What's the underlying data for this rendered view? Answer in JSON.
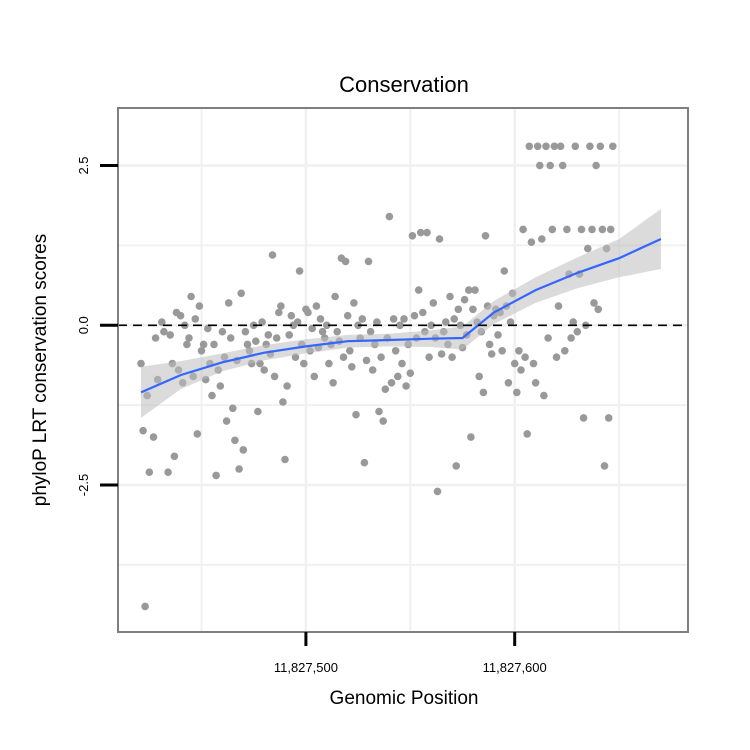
{
  "chart_data": {
    "type": "scatter",
    "title": "Conservation",
    "xlabel": "Genomic Position",
    "ylabel": "phyloP LRT conservation scores",
    "xlim": [
      11827410,
      11827683
    ],
    "ylim": [
      -4.8,
      3.4
    ],
    "x_ticks": [
      {
        "value": 11827500,
        "label": "11,827,500"
      },
      {
        "value": 11827600,
        "label": "11,827,600"
      }
    ],
    "y_ticks": [
      {
        "value": 2.5,
        "label": "2.5"
      },
      {
        "value": 0,
        "label": "0.0"
      },
      {
        "value": -2.5,
        "label": "-2.5"
      }
    ],
    "x_minor_gridlines": [
      11827450,
      11827550,
      11827650
    ],
    "y_minor_gridlines": [
      -3.75,
      -1.25,
      1.25
    ],
    "grid": true,
    "reference_line": {
      "y": 0,
      "style": "dashed"
    },
    "colors": {
      "points": "#999999",
      "smooth": "#3366ff",
      "ribbon": "#bdbdbd",
      "panel_border": "#7f7f7f",
      "gridlines": "#f0f0f0"
    },
    "points": [
      [
        11827421,
        -0.6
      ],
      [
        11827422,
        -1.65
      ],
      [
        11827423,
        -4.4
      ],
      [
        11827424,
        -1.1
      ],
      [
        11827425,
        -2.3
      ],
      [
        11827427,
        -1.75
      ],
      [
        11827428,
        -0.2
      ],
      [
        11827429,
        -0.85
      ],
      [
        11827431,
        0.05
      ],
      [
        11827432,
        -0.1
      ],
      [
        11827434,
        -2.3
      ],
      [
        11827435,
        -0.15
      ],
      [
        11827436,
        -0.6
      ],
      [
        11827437,
        -2.05
      ],
      [
        11827438,
        0.2
      ],
      [
        11827439,
        -0.7
      ],
      [
        11827440,
        0.15
      ],
      [
        11827441,
        -0.9
      ],
      [
        11827442,
        0.0
      ],
      [
        11827443,
        -0.3
      ],
      [
        11827444,
        -0.2
      ],
      [
        11827445,
        0.45
      ],
      [
        11827446,
        -0.8
      ],
      [
        11827447,
        0.1
      ],
      [
        11827448,
        -1.7
      ],
      [
        11827449,
        0.3
      ],
      [
        11827450,
        -0.4
      ],
      [
        11827451,
        -0.3
      ],
      [
        11827452,
        -0.85
      ],
      [
        11827453,
        -0.05
      ],
      [
        11827454,
        -0.6
      ],
      [
        11827455,
        -1.1
      ],
      [
        11827456,
        -0.3
      ],
      [
        11827457,
        -2.35
      ],
      [
        11827458,
        -0.7
      ],
      [
        11827459,
        -0.95
      ],
      [
        11827460,
        -0.1
      ],
      [
        11827461,
        -0.5
      ],
      [
        11827462,
        -1.5
      ],
      [
        11827463,
        0.35
      ],
      [
        11827464,
        -0.2
      ],
      [
        11827465,
        -1.3
      ],
      [
        11827466,
        -1.8
      ],
      [
        11827467,
        -0.55
      ],
      [
        11827468,
        -2.25
      ],
      [
        11827469,
        0.5
      ],
      [
        11827470,
        -1.95
      ],
      [
        11827471,
        -0.1
      ],
      [
        11827472,
        -0.3
      ],
      [
        11827473,
        -0.4
      ],
      [
        11827474,
        -0.6
      ],
      [
        11827475,
        0.0
      ],
      [
        11827476,
        -0.25
      ],
      [
        11827477,
        -1.35
      ],
      [
        11827478,
        -0.6
      ],
      [
        11827479,
        0.05
      ],
      [
        11827480,
        -0.7
      ],
      [
        11827481,
        -0.3
      ],
      [
        11827482,
        -0.15
      ],
      [
        11827483,
        -0.45
      ],
      [
        11827484,
        1.1
      ],
      [
        11827485,
        -0.8
      ],
      [
        11827486,
        -0.2
      ],
      [
        11827487,
        0.2
      ],
      [
        11827488,
        0.3
      ],
      [
        11827489,
        -1.2
      ],
      [
        11827490,
        -2.1
      ],
      [
        11827491,
        -0.95
      ],
      [
        11827492,
        -0.15
      ],
      [
        11827493,
        0.15
      ],
      [
        11827494,
        0.0
      ],
      [
        11827495,
        -0.5
      ],
      [
        11827496,
        0.05
      ],
      [
        11827497,
        0.85
      ],
      [
        11827498,
        -0.3
      ],
      [
        11827499,
        -0.6
      ],
      [
        11827500,
        0.25
      ],
      [
        11827501,
        0.2
      ],
      [
        11827502,
        -0.4
      ],
      [
        11827503,
        -0.05
      ],
      [
        11827504,
        -0.8
      ],
      [
        11827505,
        0.3
      ],
      [
        11827506,
        -0.35
      ],
      [
        11827507,
        0.1
      ],
      [
        11827508,
        -0.1
      ],
      [
        11827509,
        -0.2
      ],
      [
        11827510,
        0.0
      ],
      [
        11827511,
        -0.6
      ],
      [
        11827512,
        -0.3
      ],
      [
        11827513,
        -0.9
      ],
      [
        11827514,
        0.45
      ],
      [
        11827515,
        -0.1
      ],
      [
        11827516,
        -0.25
      ],
      [
        11827517,
        1.05
      ],
      [
        11827518,
        -0.5
      ],
      [
        11827519,
        1.0
      ],
      [
        11827520,
        0.15
      ],
      [
        11827521,
        -0.4
      ],
      [
        11827522,
        -0.65
      ],
      [
        11827523,
        0.35
      ],
      [
        11827524,
        -1.4
      ],
      [
        11827525,
        0.0
      ],
      [
        11827526,
        -0.2
      ],
      [
        11827527,
        0.1
      ],
      [
        11827528,
        -2.15
      ],
      [
        11827529,
        -0.55
      ],
      [
        11827530,
        1.0
      ],
      [
        11827531,
        -0.1
      ],
      [
        11827532,
        -0.7
      ],
      [
        11827533,
        -0.3
      ],
      [
        11827534,
        0.05
      ],
      [
        11827535,
        -1.35
      ],
      [
        11827536,
        -0.5
      ],
      [
        11827537,
        -1.5
      ],
      [
        11827538,
        -1.0
      ],
      [
        11827539,
        -0.2
      ],
      [
        11827540,
        1.7
      ],
      [
        11827541,
        -0.9
      ],
      [
        11827542,
        0.1
      ],
      [
        11827543,
        -0.4
      ],
      [
        11827544,
        -0.8
      ],
      [
        11827545,
        0.0
      ],
      [
        11827546,
        -0.6
      ],
      [
        11827547,
        0.1
      ],
      [
        11827548,
        -0.95
      ],
      [
        11827549,
        -0.3
      ],
      [
        11827550,
        -0.75
      ],
      [
        11827551,
        1.4
      ],
      [
        11827552,
        0.15
      ],
      [
        11827553,
        -0.2
      ],
      [
        11827554,
        0.55
      ],
      [
        11827555,
        1.45
      ],
      [
        11827556,
        0.2
      ],
      [
        11827557,
        -0.1
      ],
      [
        11827558,
        1.45
      ],
      [
        11827559,
        -0.5
      ],
      [
        11827560,
        0.0
      ],
      [
        11827561,
        0.35
      ],
      [
        11827562,
        -0.2
      ],
      [
        11827563,
        -2.6
      ],
      [
        11827564,
        1.35
      ],
      [
        11827565,
        -0.45
      ],
      [
        11827566,
        -0.1
      ],
      [
        11827567,
        0.05
      ],
      [
        11827568,
        -0.3
      ],
      [
        11827569,
        0.45
      ],
      [
        11827570,
        -0.5
      ],
      [
        11827571,
        0.1
      ],
      [
        11827572,
        -2.2
      ],
      [
        11827573,
        0.25
      ],
      [
        11827574,
        0.0
      ],
      [
        11827575,
        -0.35
      ],
      [
        11827576,
        0.4
      ],
      [
        11827577,
        -0.15
      ],
      [
        11827578,
        0.55
      ],
      [
        11827579,
        -1.75
      ],
      [
        11827580,
        0.25
      ],
      [
        11827581,
        0.55
      ],
      [
        11827582,
        0.05
      ],
      [
        11827583,
        -0.8
      ],
      [
        11827584,
        -0.1
      ],
      [
        11827585,
        -1.05
      ],
      [
        11827586,
        1.4
      ],
      [
        11827587,
        0.3
      ],
      [
        11827588,
        -0.3
      ],
      [
        11827589,
        -0.45
      ],
      [
        11827590,
        0.15
      ],
      [
        11827591,
        0.25
      ],
      [
        11827592,
        -0.15
      ],
      [
        11827593,
        0.2
      ],
      [
        11827594,
        -0.4
      ],
      [
        11827595,
        0.85
      ],
      [
        11827596,
        0.3
      ],
      [
        11827597,
        -0.9
      ],
      [
        11827598,
        0.05
      ],
      [
        11827599,
        0.5
      ],
      [
        11827600,
        -0.6
      ],
      [
        11827601,
        -1.05
      ],
      [
        11827602,
        -0.4
      ],
      [
        11827603,
        -0.7
      ],
      [
        11827604,
        1.5
      ],
      [
        11827605,
        -0.5
      ],
      [
        11827606,
        -1.7
      ],
      [
        11827607,
        2.8
      ],
      [
        11827608,
        1.3
      ],
      [
        11827609,
        -0.6
      ],
      [
        11827610,
        -0.9
      ],
      [
        11827611,
        2.8
      ],
      [
        11827612,
        2.5
      ],
      [
        11827613,
        1.35
      ],
      [
        11827614,
        -1.1
      ],
      [
        11827615,
        2.8
      ],
      [
        11827616,
        -0.2
      ],
      [
        11827617,
        2.5
      ],
      [
        11827618,
        1.5
      ],
      [
        11827619,
        2.8
      ],
      [
        11827620,
        -0.5
      ],
      [
        11827621,
        0.3
      ],
      [
        11827622,
        2.8
      ],
      [
        11827623,
        2.5
      ],
      [
        11827624,
        -0.4
      ],
      [
        11827625,
        1.5
      ],
      [
        11827626,
        0.8
      ],
      [
        11827627,
        -0.2
      ],
      [
        11827628,
        0.05
      ],
      [
        11827629,
        2.8
      ],
      [
        11827630,
        -0.1
      ],
      [
        11827631,
        0.8
      ],
      [
        11827632,
        1.5
      ],
      [
        11827633,
        -1.45
      ],
      [
        11827634,
        0.0
      ],
      [
        11827635,
        1.2
      ],
      [
        11827636,
        2.8
      ],
      [
        11827637,
        1.5
      ],
      [
        11827638,
        0.35
      ],
      [
        11827639,
        2.5
      ],
      [
        11827640,
        0.25
      ],
      [
        11827641,
        2.8
      ],
      [
        11827642,
        1.5
      ],
      [
        11827643,
        -2.2
      ],
      [
        11827644,
        1.2
      ],
      [
        11827645,
        -1.45
      ],
      [
        11827646,
        1.5
      ],
      [
        11827647,
        2.8
      ]
    ],
    "smooth": {
      "x": [
        11827421,
        11827440,
        11827460,
        11827480,
        11827500,
        11827520,
        11827540,
        11827560,
        11827575,
        11827590,
        11827610,
        11827630,
        11827650,
        11827670
      ],
      "y": [
        -1.05,
        -0.78,
        -0.58,
        -0.43,
        -0.33,
        -0.25,
        -0.23,
        -0.21,
        -0.2,
        0.2,
        0.55,
        0.82,
        1.05,
        1.35
      ],
      "lower": [
        -1.45,
        -1.0,
        -0.72,
        -0.55,
        -0.44,
        -0.35,
        -0.33,
        -0.34,
        -0.38,
        0.02,
        0.35,
        0.58,
        0.75,
        0.88
      ],
      "upper": [
        -0.65,
        -0.56,
        -0.44,
        -0.31,
        -0.22,
        -0.15,
        -0.13,
        -0.08,
        -0.02,
        0.38,
        0.75,
        1.06,
        1.35,
        1.82
      ]
    }
  }
}
